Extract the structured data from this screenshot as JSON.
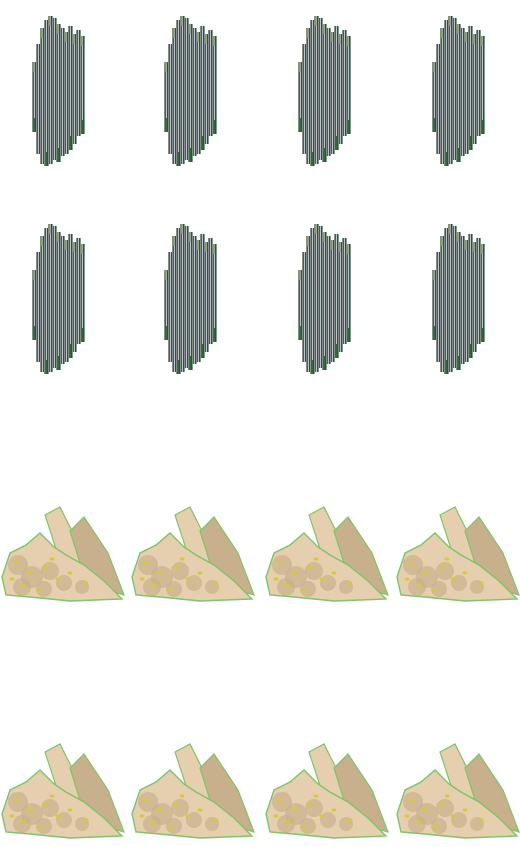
{
  "sprite_sheet": {
    "background": "#ffffff",
    "rows": [
      {
        "sprite": "crystal-shard-icon",
        "count": 4,
        "colors": {
          "dark": "#1e2a2a",
          "mid": "#6b7f86",
          "light": "#dfeef4",
          "tan": "#b8a08c",
          "green": "#7ea33a",
          "deep_green": "#2f6e3f"
        }
      },
      {
        "sprite": "crystal-shard-icon",
        "count": 4,
        "colors": {
          "dark": "#1e2a2a",
          "mid": "#6b7f86",
          "light": "#dfeef4",
          "tan": "#b8a08c",
          "green": "#7ea33a",
          "deep_green": "#2f6e3f"
        }
      },
      {
        "sprite": "rock-rubble-icon",
        "count": 4,
        "colors": {
          "stone": "#e6cfae",
          "shade": "#c9b08c",
          "spot": "#d8c83a",
          "edge": "#7dc46a"
        }
      },
      {
        "sprite": "rock-rubble-icon",
        "count": 4,
        "colors": {
          "stone": "#e6cfae",
          "shade": "#c9b08c",
          "spot": "#d8c83a",
          "edge": "#7dc46a"
        }
      }
    ]
  }
}
